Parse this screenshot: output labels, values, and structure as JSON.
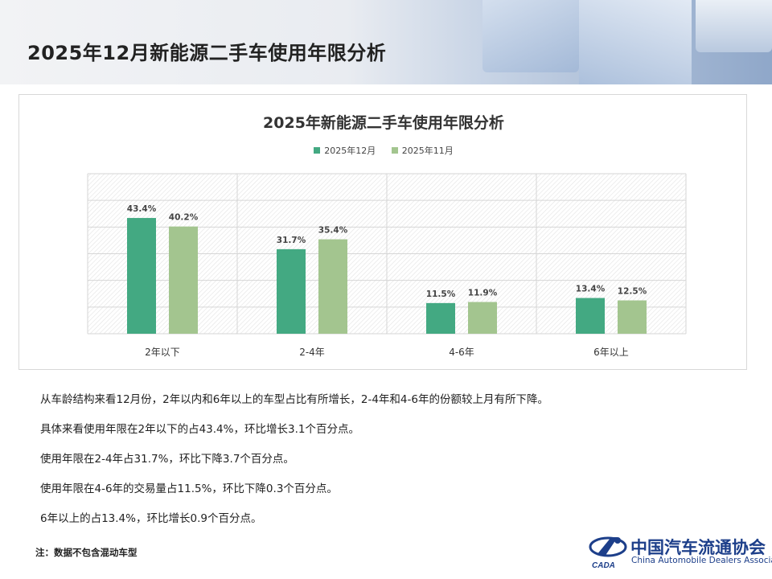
{
  "page": {
    "title": "2025年12月新能源二手车使用年限分析",
    "notes": [
      "从车龄结构来看12月份，2年以内和6年以上的车型占比有所增长，2-4年和4-6年的份额较上月有所下降。",
      "具体来看使用年限在2年以下的占43.4%，环比增长3.1个百分点。",
      "使用年限在2-4年占31.7%，环比下降3.7个百分点。",
      "使用年限在4-6年的交易量占11.5%，环比下降0.3个百分点。",
      "6年以上的占13.4%，环比增长0.9个百分点。"
    ],
    "footnote": "注：数据不包含混动车型"
  },
  "logo": {
    "name": "中国汽车流通协会",
    "english": "China Automobile Dealers Association",
    "mark_text": "CADA"
  },
  "chart_data": {
    "type": "bar",
    "title": "2025年新能源二手车使用年限分析",
    "categories": [
      "2年以下",
      "2-4年",
      "4-6年",
      "6年以上"
    ],
    "series": [
      {
        "name": "2025年12月",
        "values": [
          43.4,
          31.7,
          11.5,
          13.4
        ],
        "labels": [
          "43.4%",
          "31.7%",
          "11.5%",
          "13.4%"
        ],
        "color": "#43a982"
      },
      {
        "name": "2025年11月",
        "values": [
          40.2,
          35.4,
          11.9,
          12.5
        ],
        "labels": [
          "40.2%",
          "35.4%",
          "11.9%",
          "12.5%"
        ],
        "color": "#a3c58f"
      }
    ],
    "ylim": [
      0,
      60
    ],
    "grid": true,
    "legend_position": "top-center",
    "xlabel": "",
    "ylabel": ""
  }
}
